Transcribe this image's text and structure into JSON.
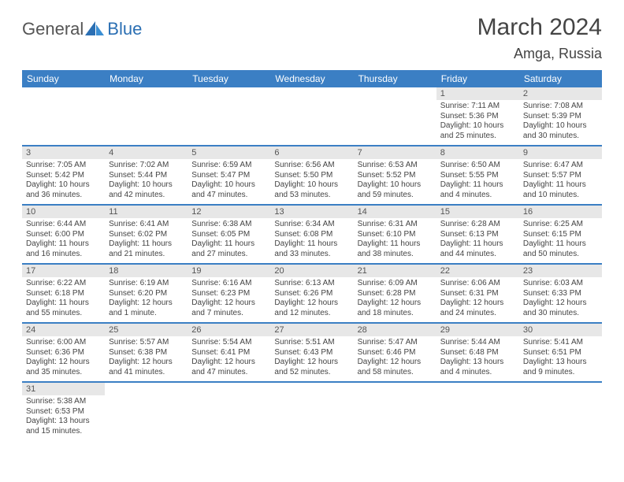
{
  "brand": {
    "part1": "General",
    "part2": "Blue"
  },
  "title": "March 2024",
  "location": "Amga, Russia",
  "colors": {
    "header_bg": "#3b7fc4",
    "header_text": "#ffffff",
    "daynum_bg": "#e7e7e7",
    "row_border": "#3b7fc4",
    "text": "#444444",
    "page_bg": "#ffffff"
  },
  "weekdays": [
    "Sunday",
    "Monday",
    "Tuesday",
    "Wednesday",
    "Thursday",
    "Friday",
    "Saturday"
  ],
  "weeks": [
    [
      {
        "n": "",
        "sr": "",
        "ss": "",
        "dl": ""
      },
      {
        "n": "",
        "sr": "",
        "ss": "",
        "dl": ""
      },
      {
        "n": "",
        "sr": "",
        "ss": "",
        "dl": ""
      },
      {
        "n": "",
        "sr": "",
        "ss": "",
        "dl": ""
      },
      {
        "n": "",
        "sr": "",
        "ss": "",
        "dl": ""
      },
      {
        "n": "1",
        "sr": "Sunrise: 7:11 AM",
        "ss": "Sunset: 5:36 PM",
        "dl": "Daylight: 10 hours and 25 minutes."
      },
      {
        "n": "2",
        "sr": "Sunrise: 7:08 AM",
        "ss": "Sunset: 5:39 PM",
        "dl": "Daylight: 10 hours and 30 minutes."
      }
    ],
    [
      {
        "n": "3",
        "sr": "Sunrise: 7:05 AM",
        "ss": "Sunset: 5:42 PM",
        "dl": "Daylight: 10 hours and 36 minutes."
      },
      {
        "n": "4",
        "sr": "Sunrise: 7:02 AM",
        "ss": "Sunset: 5:44 PM",
        "dl": "Daylight: 10 hours and 42 minutes."
      },
      {
        "n": "5",
        "sr": "Sunrise: 6:59 AM",
        "ss": "Sunset: 5:47 PM",
        "dl": "Daylight: 10 hours and 47 minutes."
      },
      {
        "n": "6",
        "sr": "Sunrise: 6:56 AM",
        "ss": "Sunset: 5:50 PM",
        "dl": "Daylight: 10 hours and 53 minutes."
      },
      {
        "n": "7",
        "sr": "Sunrise: 6:53 AM",
        "ss": "Sunset: 5:52 PM",
        "dl": "Daylight: 10 hours and 59 minutes."
      },
      {
        "n": "8",
        "sr": "Sunrise: 6:50 AM",
        "ss": "Sunset: 5:55 PM",
        "dl": "Daylight: 11 hours and 4 minutes."
      },
      {
        "n": "9",
        "sr": "Sunrise: 6:47 AM",
        "ss": "Sunset: 5:57 PM",
        "dl": "Daylight: 11 hours and 10 minutes."
      }
    ],
    [
      {
        "n": "10",
        "sr": "Sunrise: 6:44 AM",
        "ss": "Sunset: 6:00 PM",
        "dl": "Daylight: 11 hours and 16 minutes."
      },
      {
        "n": "11",
        "sr": "Sunrise: 6:41 AM",
        "ss": "Sunset: 6:02 PM",
        "dl": "Daylight: 11 hours and 21 minutes."
      },
      {
        "n": "12",
        "sr": "Sunrise: 6:38 AM",
        "ss": "Sunset: 6:05 PM",
        "dl": "Daylight: 11 hours and 27 minutes."
      },
      {
        "n": "13",
        "sr": "Sunrise: 6:34 AM",
        "ss": "Sunset: 6:08 PM",
        "dl": "Daylight: 11 hours and 33 minutes."
      },
      {
        "n": "14",
        "sr": "Sunrise: 6:31 AM",
        "ss": "Sunset: 6:10 PM",
        "dl": "Daylight: 11 hours and 38 minutes."
      },
      {
        "n": "15",
        "sr": "Sunrise: 6:28 AM",
        "ss": "Sunset: 6:13 PM",
        "dl": "Daylight: 11 hours and 44 minutes."
      },
      {
        "n": "16",
        "sr": "Sunrise: 6:25 AM",
        "ss": "Sunset: 6:15 PM",
        "dl": "Daylight: 11 hours and 50 minutes."
      }
    ],
    [
      {
        "n": "17",
        "sr": "Sunrise: 6:22 AM",
        "ss": "Sunset: 6:18 PM",
        "dl": "Daylight: 11 hours and 55 minutes."
      },
      {
        "n": "18",
        "sr": "Sunrise: 6:19 AM",
        "ss": "Sunset: 6:20 PM",
        "dl": "Daylight: 12 hours and 1 minute."
      },
      {
        "n": "19",
        "sr": "Sunrise: 6:16 AM",
        "ss": "Sunset: 6:23 PM",
        "dl": "Daylight: 12 hours and 7 minutes."
      },
      {
        "n": "20",
        "sr": "Sunrise: 6:13 AM",
        "ss": "Sunset: 6:26 PM",
        "dl": "Daylight: 12 hours and 12 minutes."
      },
      {
        "n": "21",
        "sr": "Sunrise: 6:09 AM",
        "ss": "Sunset: 6:28 PM",
        "dl": "Daylight: 12 hours and 18 minutes."
      },
      {
        "n": "22",
        "sr": "Sunrise: 6:06 AM",
        "ss": "Sunset: 6:31 PM",
        "dl": "Daylight: 12 hours and 24 minutes."
      },
      {
        "n": "23",
        "sr": "Sunrise: 6:03 AM",
        "ss": "Sunset: 6:33 PM",
        "dl": "Daylight: 12 hours and 30 minutes."
      }
    ],
    [
      {
        "n": "24",
        "sr": "Sunrise: 6:00 AM",
        "ss": "Sunset: 6:36 PM",
        "dl": "Daylight: 12 hours and 35 minutes."
      },
      {
        "n": "25",
        "sr": "Sunrise: 5:57 AM",
        "ss": "Sunset: 6:38 PM",
        "dl": "Daylight: 12 hours and 41 minutes."
      },
      {
        "n": "26",
        "sr": "Sunrise: 5:54 AM",
        "ss": "Sunset: 6:41 PM",
        "dl": "Daylight: 12 hours and 47 minutes."
      },
      {
        "n": "27",
        "sr": "Sunrise: 5:51 AM",
        "ss": "Sunset: 6:43 PM",
        "dl": "Daylight: 12 hours and 52 minutes."
      },
      {
        "n": "28",
        "sr": "Sunrise: 5:47 AM",
        "ss": "Sunset: 6:46 PM",
        "dl": "Daylight: 12 hours and 58 minutes."
      },
      {
        "n": "29",
        "sr": "Sunrise: 5:44 AM",
        "ss": "Sunset: 6:48 PM",
        "dl": "Daylight: 13 hours and 4 minutes."
      },
      {
        "n": "30",
        "sr": "Sunrise: 5:41 AM",
        "ss": "Sunset: 6:51 PM",
        "dl": "Daylight: 13 hours and 9 minutes."
      }
    ],
    [
      {
        "n": "31",
        "sr": "Sunrise: 5:38 AM",
        "ss": "Sunset: 6:53 PM",
        "dl": "Daylight: 13 hours and 15 minutes."
      },
      {
        "n": "",
        "sr": "",
        "ss": "",
        "dl": ""
      },
      {
        "n": "",
        "sr": "",
        "ss": "",
        "dl": ""
      },
      {
        "n": "",
        "sr": "",
        "ss": "",
        "dl": ""
      },
      {
        "n": "",
        "sr": "",
        "ss": "",
        "dl": ""
      },
      {
        "n": "",
        "sr": "",
        "ss": "",
        "dl": ""
      },
      {
        "n": "",
        "sr": "",
        "ss": "",
        "dl": ""
      }
    ]
  ]
}
